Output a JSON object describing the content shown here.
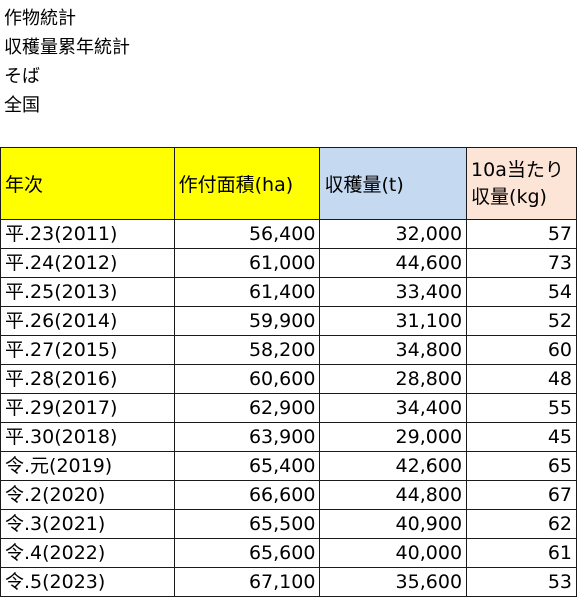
{
  "headings": [
    "作物統計",
    "収穫量累年統計",
    "そば",
    "全国"
  ],
  "table": {
    "columns": {
      "year": "年次",
      "area": "作付面積(ha)",
      "harvest": "収穫量(t)",
      "yield_line1": "10a当たり",
      "yield_line2": "収量(kg)"
    },
    "header_colors": {
      "year": "#ffff00",
      "area": "#ffff00",
      "harvest": "#c5d9f1",
      "yield": "#fce4d6"
    },
    "rows": [
      {
        "year": "平.23(2011)",
        "area": "56,400",
        "harvest": "32,000",
        "yield": "57"
      },
      {
        "year": "平.24(2012)",
        "area": "61,000",
        "harvest": "44,600",
        "yield": "73"
      },
      {
        "year": "平.25(2013)",
        "area": "61,400",
        "harvest": "33,400",
        "yield": "54"
      },
      {
        "year": "平.26(2014)",
        "area": "59,900",
        "harvest": "31,100",
        "yield": "52"
      },
      {
        "year": "平.27(2015)",
        "area": "58,200",
        "harvest": "34,800",
        "yield": "60"
      },
      {
        "year": "平.28(2016)",
        "area": "60,600",
        "harvest": "28,800",
        "yield": "48"
      },
      {
        "year": "平.29(2017)",
        "area": "62,900",
        "harvest": "34,400",
        "yield": "55"
      },
      {
        "year": "平.30(2018)",
        "area": "63,900",
        "harvest": "29,000",
        "yield": "45"
      },
      {
        "year": "令.元(2019)",
        "area": "65,400",
        "harvest": "42,600",
        "yield": "65"
      },
      {
        "year": "令.2(2020)",
        "area": "66,600",
        "harvest": "44,800",
        "yield": "67"
      },
      {
        "year": "令.3(2021)",
        "area": "65,500",
        "harvest": "40,900",
        "yield": "62"
      },
      {
        "year": "令.4(2022)",
        "area": "65,600",
        "harvest": "40,000",
        "yield": "61"
      },
      {
        "year": "令.5(2023)",
        "area": "67,100",
        "harvest": "35,600",
        "yield": "53"
      }
    ]
  }
}
